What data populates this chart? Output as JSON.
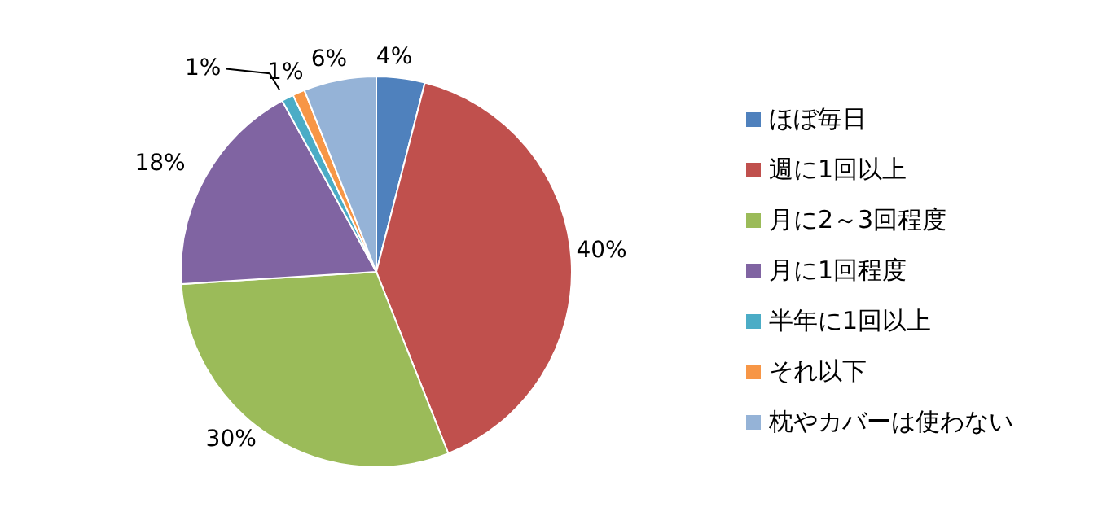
{
  "chart_data": {
    "type": "pie",
    "categories": [
      "ほぼ毎日",
      "週に1回以上",
      "月に2～3回程度",
      "月に1回程度",
      "半年に1回以上",
      "それ以下",
      "枕やカバーは使わない"
    ],
    "values": [
      4,
      40,
      30,
      18,
      1,
      1,
      6
    ],
    "value_labels": [
      "4%",
      "40%",
      "30%",
      "18%",
      "1%",
      "1%",
      "6%"
    ],
    "colors": [
      "#4f81bd",
      "#c0504d",
      "#9bbb59",
      "#8064a2",
      "#4bacc6",
      "#f79646",
      "#95b3d7"
    ],
    "legend": "right"
  }
}
